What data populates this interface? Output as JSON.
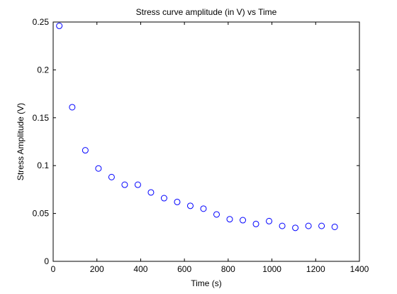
{
  "chart_data": {
    "type": "scatter",
    "title": "Stress curve amplitude (in V) vs Time",
    "xlabel": "Time (s)",
    "ylabel": "Stress Amplitude (V)",
    "xlim": [
      0,
      1400
    ],
    "ylim": [
      0,
      0.25
    ],
    "xticks": [
      0,
      200,
      400,
      600,
      800,
      1000,
      1200,
      1400
    ],
    "yticks": [
      0,
      0.05,
      0.1,
      0.15,
      0.2,
      0.25
    ],
    "xtick_labels": [
      "0",
      "200",
      "400",
      "600",
      "800",
      "1000",
      "1200",
      "1400"
    ],
    "ytick_labels": [
      "0",
      "0.05",
      "0.1",
      "0.15",
      "0.2",
      "0.25"
    ],
    "grid": false,
    "legend": "none",
    "marker": "circle-open",
    "marker_color": "#0000ff",
    "series": [
      {
        "x": [
          28,
          87,
          147,
          207,
          267,
          327,
          387,
          447,
          507,
          567,
          627,
          687,
          747,
          807,
          867,
          927,
          987,
          1047,
          1107,
          1167,
          1227,
          1287
        ],
        "y": [
          0.246,
          0.161,
          0.116,
          0.097,
          0.088,
          0.08,
          0.08,
          0.072,
          0.066,
          0.062,
          0.058,
          0.055,
          0.049,
          0.044,
          0.043,
          0.039,
          0.042,
          0.037,
          0.035,
          0.037,
          0.037,
          0.036
        ]
      }
    ]
  }
}
